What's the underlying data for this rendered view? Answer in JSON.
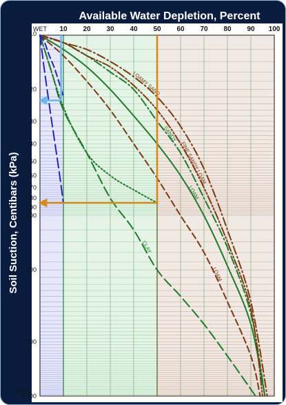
{
  "colors": {
    "frame": "#0a1c3e",
    "wet_zone": "#2f37c9",
    "adequate_zone": "#2aa33a",
    "dry_zone": "#8b4a1e",
    "orange_arrow": "#d6891f",
    "blue_arrow": "#6fb6ea",
    "green_curve": "#1f7a2a",
    "brown_curve": "#7a3a12",
    "blue_curve": "#2128b0"
  },
  "chart_data": {
    "type": "line",
    "title": "Available Water Depletion, Percent",
    "ylabel": "Soil Suction, Centibars (kPa)",
    "xlabel": "",
    "xlim": [
      0,
      100
    ],
    "ylim": [
      10,
      1000
    ],
    "y_scale": "log",
    "x_ticks": [
      "10",
      "20",
      "30",
      "40",
      "50",
      "60",
      "70",
      "80",
      "90",
      "100"
    ],
    "x_start_label": "WET",
    "y_ticks": [
      "10",
      "20",
      "30",
      "40",
      "50",
      "60",
      "70",
      "80",
      "90",
      "100",
      "200",
      "500",
      "1000"
    ],
    "y_end_label": "DRY",
    "zones": [
      {
        "color": "blue",
        "from": 0,
        "to": 10
      },
      {
        "color": "green",
        "from": 10,
        "to": 50
      },
      {
        "color": "brown",
        "from": 50,
        "to": 100
      }
    ],
    "grid": true,
    "series": [
      {
        "name": "SANDY",
        "style": "dash-dot",
        "color": "green",
        "x": [
          0,
          10,
          20,
          30,
          40,
          50,
          60,
          70,
          80,
          90,
          96
        ],
        "y": [
          10,
          11,
          13,
          16,
          20,
          30,
          45,
          80,
          150,
          350,
          1000
        ]
      },
      {
        "name": "LOAM",
        "style": "solid",
        "color": "green",
        "x": [
          0,
          10,
          20,
          30,
          40,
          50,
          60,
          70,
          80,
          90,
          96
        ],
        "y": [
          10,
          12,
          15,
          20,
          28,
          40,
          60,
          100,
          190,
          400,
          1000
        ]
      },
      {
        "name": "LOAMY SAND",
        "style": "dash-dot",
        "color": "brown",
        "x": [
          0,
          10,
          20,
          30,
          40,
          50,
          60,
          70,
          80,
          90,
          97
        ],
        "y": [
          10,
          11,
          12,
          14,
          17,
          22,
          32,
          55,
          120,
          300,
          1000
        ]
      },
      {
        "name": "FINE SANDY LOAM",
        "style": "dash-dot-dot",
        "color": "brown",
        "x": [
          0,
          10,
          20,
          30,
          40,
          50,
          60,
          70,
          80,
          90,
          95
        ],
        "y": [
          10,
          11,
          13,
          15,
          19,
          26,
          40,
          70,
          140,
          330,
          1000
        ]
      },
      {
        "name": "LOAM",
        "style": "dashed",
        "color": "brown",
        "x": [
          0,
          10,
          20,
          30,
          40,
          50,
          60,
          70,
          80,
          90,
          94
        ],
        "y": [
          10,
          13,
          18,
          26,
          40,
          62,
          100,
          160,
          300,
          600,
          1000
        ]
      },
      {
        "name": "CLAY",
        "style": "long-dash",
        "color": "green",
        "x": [
          0,
          5,
          10,
          20,
          30,
          40,
          50,
          60,
          70,
          80,
          92
        ],
        "y": [
          10,
          16,
          26,
          45,
          80,
          120,
          200,
          280,
          400,
          600,
          1000
        ]
      },
      {
        "name": "",
        "style": "dotted",
        "color": "green",
        "x": [
          0,
          10,
          20,
          30,
          40,
          50
        ],
        "y": [
          10,
          25,
          45,
          60,
          72,
          85
        ]
      },
      {
        "name": "",
        "style": "dashed",
        "color": "blue",
        "x": [
          0,
          2,
          4,
          6,
          8,
          10
        ],
        "y": [
          10,
          11,
          13,
          15,
          18,
          22
        ]
      },
      {
        "name": "",
        "style": "long-dash",
        "color": "blue",
        "x": [
          0,
          2,
          5,
          8,
          10
        ],
        "y": [
          10,
          16,
          30,
          55,
          85
        ]
      }
    ],
    "annotations": [
      {
        "type": "arrow",
        "color": "orange",
        "path": [
          [
            50,
            10
          ],
          [
            50,
            85
          ],
          [
            0,
            85
          ]
        ]
      },
      {
        "type": "arrow",
        "color": "blue",
        "path": [
          [
            9,
            10
          ],
          [
            9,
            23
          ],
          [
            0,
            23
          ]
        ]
      }
    ]
  }
}
